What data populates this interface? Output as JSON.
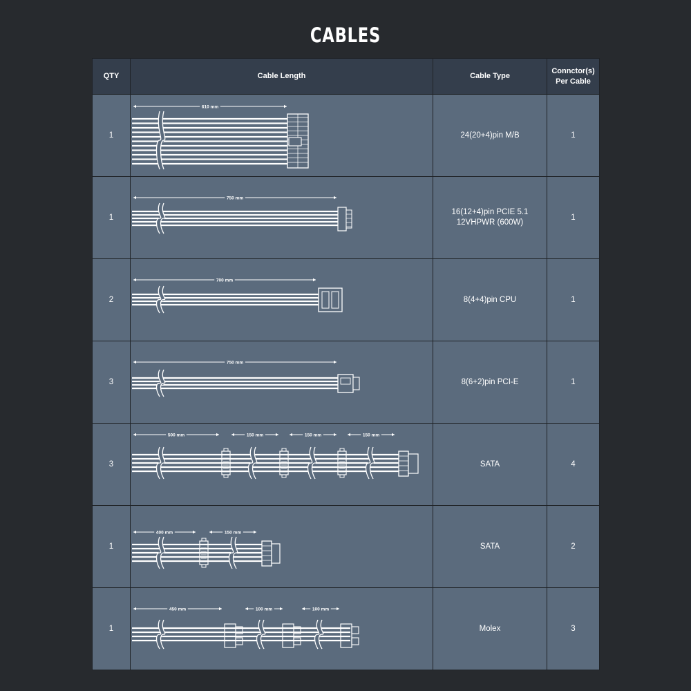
{
  "title": "CABLES",
  "columns": {
    "qty": "QTY",
    "length": "Cable Length",
    "type": "Cable Type",
    "connectors": "Connctor(s) Per Cable"
  },
  "rows": [
    {
      "qty": "1",
      "type": "24(20+4)pin M/B",
      "connectors": "1",
      "diagram": "atx24",
      "lengths": [
        "610 mm"
      ]
    },
    {
      "qty": "1",
      "type": "16(12+4)pin PCIE 5.1 12VHPWR (600W)",
      "connectors": "1",
      "diagram": "pcie16",
      "lengths": [
        "750 mm"
      ]
    },
    {
      "qty": "2",
      "type": "8(4+4)pin CPU",
      "connectors": "1",
      "diagram": "cpu8",
      "lengths": [
        "700 mm"
      ]
    },
    {
      "qty": "3",
      "type": "8(6+2)pin PCI-E",
      "connectors": "1",
      "diagram": "pcie8",
      "lengths": [
        "750 mm"
      ]
    },
    {
      "qty": "3",
      "type": "SATA",
      "connectors": "4",
      "diagram": "sata4",
      "lengths": [
        "500 mm",
        "150 mm",
        "150 mm",
        "150 mm"
      ]
    },
    {
      "qty": "1",
      "type": "SATA",
      "connectors": "2",
      "diagram": "sata2",
      "lengths": [
        "400 mm",
        "150 mm"
      ]
    },
    {
      "qty": "1",
      "type": "Molex",
      "connectors": "3",
      "diagram": "molex3",
      "lengths": [
        "450 mm",
        "100 mm",
        "100 mm"
      ]
    }
  ],
  "colors": {
    "background": "#272a2e",
    "header": "#343e4c",
    "cell": "#5b6b7d",
    "line": "#ffffff"
  }
}
